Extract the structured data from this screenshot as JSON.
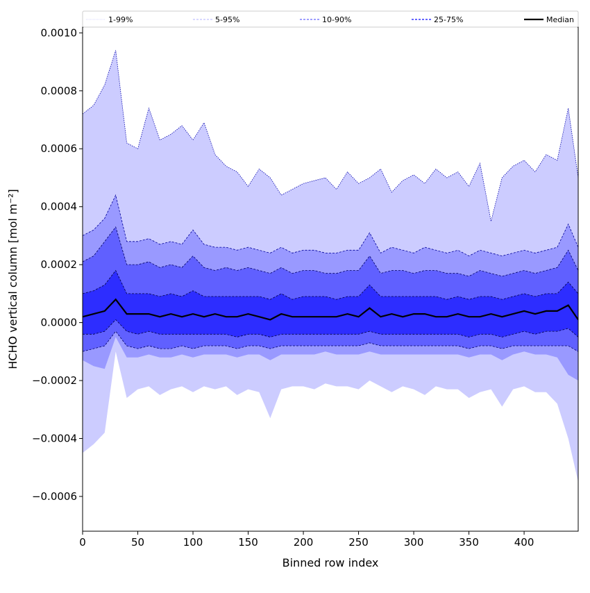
{
  "chart_data": {
    "type": "area",
    "title": "",
    "xlabel": "Binned row index",
    "ylabel": "HCHO vertical column [mol m⁻²]",
    "xlim": [
      0,
      449
    ],
    "ylim": [
      -0.00072,
      0.00102
    ],
    "value_multiplier": 0.0001,
    "grid": false,
    "legend_placement": "top, above plot, horizontal",
    "x_ticks": [
      0,
      50,
      100,
      150,
      200,
      250,
      300,
      350,
      400
    ],
    "x_tick_labels": [
      "0",
      "50",
      "100",
      "150",
      "200",
      "250",
      "300",
      "350",
      "400"
    ],
    "y_ticks": [
      -0.0006,
      -0.0004,
      -0.0002,
      0.0,
      0.0002,
      0.0004,
      0.0006,
      0.0008,
      0.001
    ],
    "y_tick_labels": [
      "−0.0006",
      "−0.0004",
      "−0.0002",
      "0.0000",
      "0.0002",
      "0.0004",
      "0.0006",
      "0.0008",
      "0.0010"
    ],
    "x": [
      0,
      10,
      20,
      30,
      40,
      50,
      60,
      70,
      80,
      90,
      100,
      110,
      120,
      130,
      140,
      150,
      160,
      170,
      180,
      190,
      200,
      210,
      220,
      230,
      240,
      250,
      260,
      270,
      280,
      290,
      300,
      310,
      320,
      330,
      340,
      350,
      360,
      370,
      380,
      390,
      400,
      410,
      420,
      430,
      440,
      449
    ],
    "bands": [
      {
        "name": "1-99%",
        "color": "#ccccff",
        "line_color": "#0000aa",
        "lower": [
          -4.5,
          -4.2,
          -3.8,
          -1.0,
          -2.6,
          -2.3,
          -2.2,
          -2.5,
          -2.3,
          -2.2,
          -2.4,
          -2.2,
          -2.3,
          -2.2,
          -2.5,
          -2.3,
          -2.4,
          -3.3,
          -2.3,
          -2.2,
          -2.2,
          -2.3,
          -2.1,
          -2.2,
          -2.2,
          -2.3,
          -2.0,
          -2.2,
          -2.4,
          -2.2,
          -2.3,
          -2.5,
          -2.2,
          -2.3,
          -2.3,
          -2.6,
          -2.4,
          -2.3,
          -2.9,
          -2.3,
          -2.2,
          -2.4,
          -2.4,
          -2.8,
          -4.0,
          -5.5
        ],
        "upper": [
          7.2,
          7.5,
          8.2,
          9.4,
          6.2,
          6.0,
          7.4,
          6.3,
          6.5,
          6.8,
          6.3,
          6.9,
          5.8,
          5.4,
          5.2,
          4.7,
          5.3,
          5.0,
          4.4,
          4.6,
          4.8,
          4.9,
          5.0,
          4.6,
          5.2,
          4.8,
          5.0,
          5.3,
          4.5,
          4.9,
          5.1,
          4.8,
          5.3,
          5.0,
          5.2,
          4.7,
          5.5,
          3.5,
          5.0,
          5.4,
          5.6,
          5.2,
          5.8,
          5.6,
          7.4,
          5.0
        ]
      },
      {
        "name": "5-95%",
        "color": "#9999ff",
        "line_color": "#000099",
        "lower": [
          -1.3,
          -1.5,
          -1.6,
          -0.5,
          -1.2,
          -1.2,
          -1.1,
          -1.2,
          -1.2,
          -1.1,
          -1.2,
          -1.1,
          -1.1,
          -1.1,
          -1.2,
          -1.1,
          -1.1,
          -1.3,
          -1.1,
          -1.1,
          -1.1,
          -1.1,
          -1.0,
          -1.1,
          -1.1,
          -1.1,
          -1.0,
          -1.1,
          -1.1,
          -1.1,
          -1.1,
          -1.1,
          -1.1,
          -1.1,
          -1.1,
          -1.2,
          -1.1,
          -1.1,
          -1.3,
          -1.1,
          -1.0,
          -1.1,
          -1.1,
          -1.2,
          -1.8,
          -2.0
        ],
        "upper": [
          3.0,
          3.2,
          3.6,
          4.4,
          2.8,
          2.8,
          2.9,
          2.7,
          2.8,
          2.7,
          3.2,
          2.7,
          2.6,
          2.6,
          2.5,
          2.6,
          2.5,
          2.4,
          2.6,
          2.4,
          2.5,
          2.5,
          2.4,
          2.4,
          2.5,
          2.5,
          3.1,
          2.4,
          2.6,
          2.5,
          2.4,
          2.6,
          2.5,
          2.4,
          2.5,
          2.3,
          2.5,
          2.4,
          2.3,
          2.4,
          2.5,
          2.4,
          2.5,
          2.6,
          3.4,
          2.6
        ]
      },
      {
        "name": "10-90%",
        "color": "#6060ff",
        "line_color": "#000066",
        "lower": [
          -1.0,
          -0.9,
          -0.8,
          -0.3,
          -0.8,
          -0.9,
          -0.8,
          -0.9,
          -0.9,
          -0.8,
          -0.9,
          -0.8,
          -0.8,
          -0.8,
          -0.9,
          -0.8,
          -0.8,
          -0.9,
          -0.8,
          -0.8,
          -0.8,
          -0.8,
          -0.8,
          -0.8,
          -0.8,
          -0.8,
          -0.7,
          -0.8,
          -0.8,
          -0.8,
          -0.8,
          -0.8,
          -0.8,
          -0.8,
          -0.8,
          -0.9,
          -0.8,
          -0.8,
          -0.9,
          -0.8,
          -0.8,
          -0.8,
          -0.8,
          -0.8,
          -0.8,
          -1.0
        ],
        "upper": [
          2.1,
          2.3,
          2.8,
          3.3,
          2.0,
          2.0,
          2.1,
          1.9,
          2.0,
          1.9,
          2.3,
          1.9,
          1.8,
          1.9,
          1.8,
          1.9,
          1.8,
          1.7,
          1.9,
          1.7,
          1.8,
          1.8,
          1.7,
          1.7,
          1.8,
          1.8,
          2.3,
          1.7,
          1.8,
          1.8,
          1.7,
          1.8,
          1.8,
          1.7,
          1.7,
          1.6,
          1.8,
          1.7,
          1.6,
          1.7,
          1.8,
          1.7,
          1.8,
          1.9,
          2.5,
          1.8
        ]
      },
      {
        "name": "25-75%",
        "color": "#2d2dff",
        "line_color": "#000044",
        "lower": [
          -0.4,
          -0.4,
          -0.3,
          0.1,
          -0.3,
          -0.4,
          -0.3,
          -0.4,
          -0.4,
          -0.4,
          -0.4,
          -0.4,
          -0.4,
          -0.4,
          -0.5,
          -0.4,
          -0.4,
          -0.5,
          -0.4,
          -0.4,
          -0.4,
          -0.4,
          -0.4,
          -0.4,
          -0.4,
          -0.4,
          -0.3,
          -0.4,
          -0.4,
          -0.4,
          -0.4,
          -0.4,
          -0.4,
          -0.4,
          -0.4,
          -0.5,
          -0.4,
          -0.4,
          -0.5,
          -0.4,
          -0.3,
          -0.4,
          -0.3,
          -0.3,
          -0.2,
          -0.5
        ],
        "upper": [
          1.0,
          1.1,
          1.3,
          1.8,
          1.0,
          1.0,
          1.0,
          0.9,
          1.0,
          0.9,
          1.1,
          0.9,
          0.9,
          0.9,
          0.9,
          0.9,
          0.9,
          0.8,
          1.0,
          0.8,
          0.9,
          0.9,
          0.9,
          0.8,
          0.9,
          0.9,
          1.3,
          0.9,
          0.9,
          0.9,
          0.9,
          0.9,
          0.9,
          0.8,
          0.9,
          0.8,
          0.9,
          0.9,
          0.8,
          0.9,
          1.0,
          0.9,
          1.0,
          1.0,
          1.4,
          1.0
        ]
      }
    ],
    "median": {
      "name": "Median",
      "color": "#000000",
      "values": [
        0.2,
        0.3,
        0.4,
        0.8,
        0.3,
        0.3,
        0.3,
        0.2,
        0.3,
        0.2,
        0.3,
        0.2,
        0.3,
        0.2,
        0.2,
        0.3,
        0.2,
        0.1,
        0.3,
        0.2,
        0.2,
        0.2,
        0.2,
        0.2,
        0.3,
        0.2,
        0.5,
        0.2,
        0.3,
        0.2,
        0.3,
        0.3,
        0.2,
        0.2,
        0.3,
        0.2,
        0.2,
        0.3,
        0.2,
        0.3,
        0.4,
        0.3,
        0.4,
        0.4,
        0.6,
        0.1
      ]
    },
    "legend": [
      {
        "label": "1-99%",
        "color": "#ccccff",
        "style": "dotted"
      },
      {
        "label": "5-95%",
        "color": "#9999ff",
        "style": "dashed"
      },
      {
        "label": "10-90%",
        "color": "#6666ff",
        "style": "dashed"
      },
      {
        "label": "25-75%",
        "color": "#3333ff",
        "style": "dashed"
      },
      {
        "label": "Median",
        "color": "#000000",
        "style": "solid"
      }
    ]
  }
}
